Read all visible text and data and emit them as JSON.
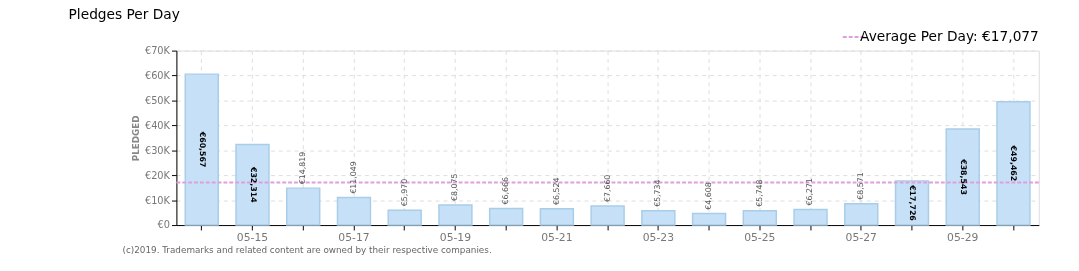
{
  "chart_data": {
    "type": "bar",
    "title": "Pledges Per Day",
    "ylabel": "PLEDGED",
    "categories": [
      null,
      "05-15",
      null,
      "05-17",
      null,
      "05-19",
      null,
      "05-21",
      null,
      "05-23",
      null,
      "05-25",
      null,
      "05-27",
      null,
      "05-29",
      null
    ],
    "values": [
      60567,
      32314,
      14819,
      11049,
      5970,
      8075,
      6666,
      6524,
      7660,
      5734,
      4608,
      5748,
      6271,
      8571,
      17726,
      38543,
      49462
    ],
    "value_labels": [
      "€60,567",
      "€32,314",
      "€14,819",
      "€11,049",
      "€5,970",
      "€8,075",
      "€6,666",
      "€6,524",
      "€7,660",
      "€5,734",
      "€4,608",
      "€5,748",
      "€6,271",
      "€8,571",
      "€17,726",
      "€38,543",
      "€49,462"
    ],
    "color": "#c6e0f7",
    "ylim": [
      0,
      70000
    ],
    "yticks": [
      {
        "value": 0,
        "label": "€0"
      },
      {
        "value": 10000,
        "label": "€10K"
      },
      {
        "value": 20000,
        "label": "€20K"
      },
      {
        "value": 30000,
        "label": "€30K"
      },
      {
        "value": 40000,
        "label": "€40K"
      },
      {
        "value": 50000,
        "label": "€50K"
      },
      {
        "value": 60000,
        "label": "€60K"
      },
      {
        "value": 70000,
        "label": "€70K"
      }
    ],
    "grid": true,
    "ref_lines": [
      {
        "axis": "y",
        "value": 17077,
        "label": "Average Per Day: €17,077",
        "color": "#dda0dd",
        "line_style": "dashed"
      }
    ],
    "annotations": [
      "(c)2019. Trademarks and related content are owned by their respective companies."
    ]
  }
}
